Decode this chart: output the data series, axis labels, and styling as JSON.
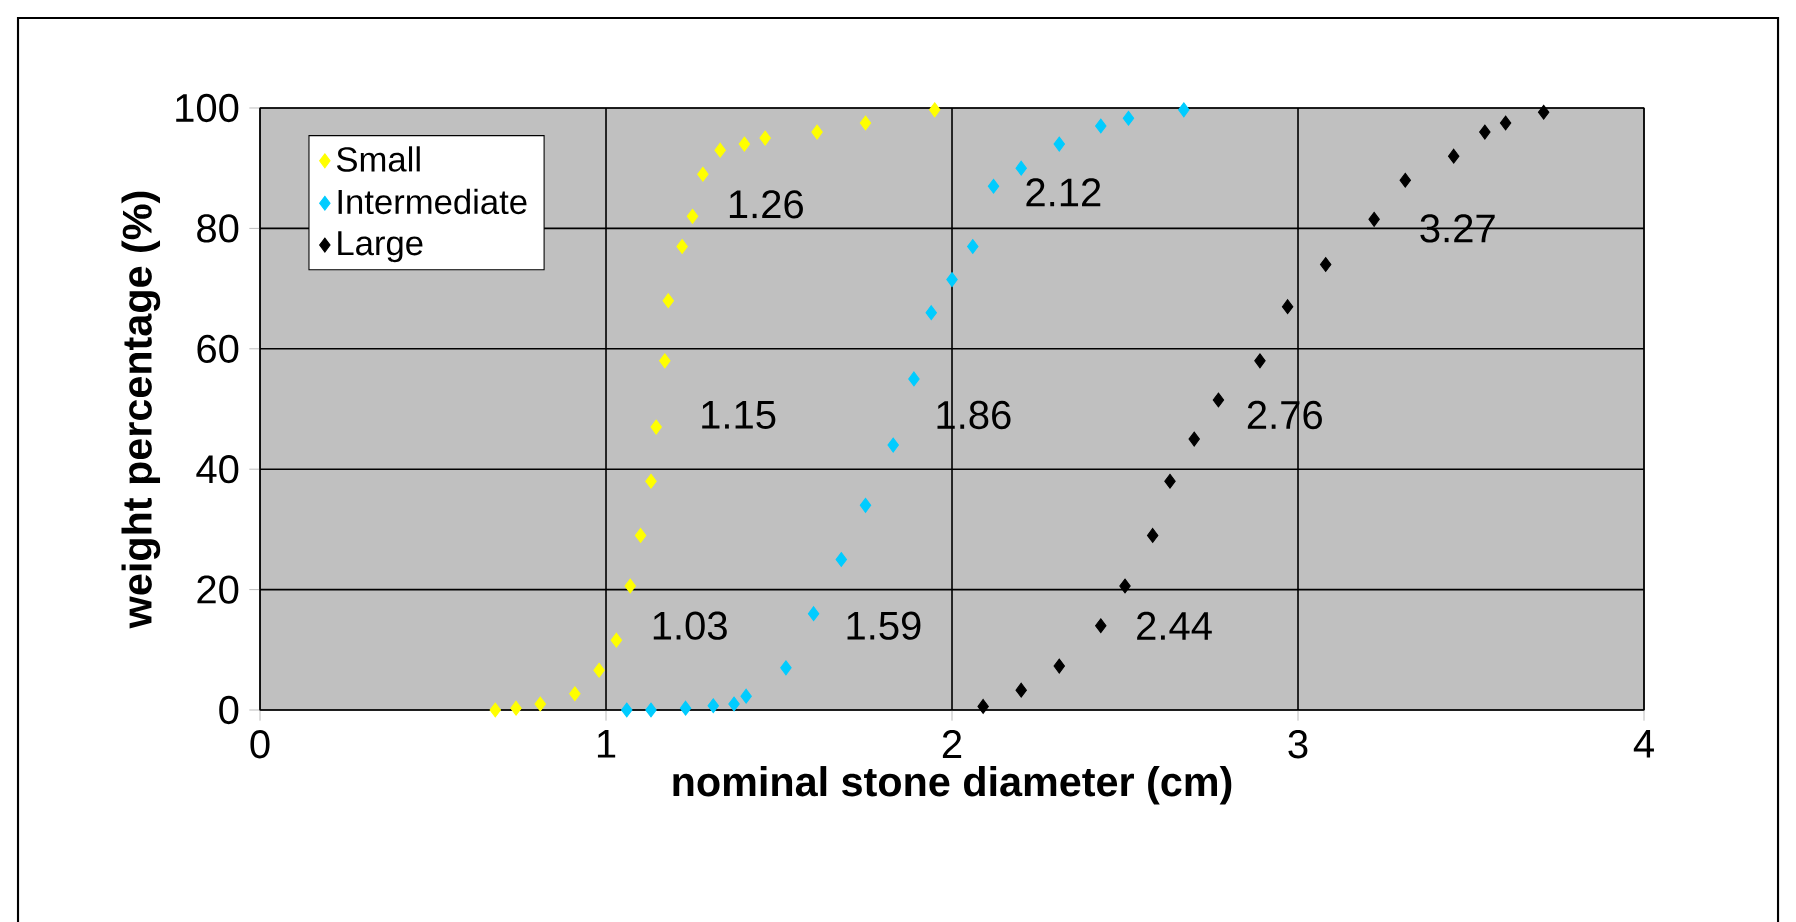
{
  "chart_data": {
    "type": "scatter",
    "xlabel": "nominal stone diameter (cm)",
    "ylabel": "weight percentage (%)",
    "xlim": [
      0,
      4
    ],
    "ylim": [
      0,
      100
    ],
    "xticks": [
      0,
      1,
      2,
      3,
      4
    ],
    "yticks": [
      0,
      20,
      40,
      60,
      80,
      100
    ],
    "grid": true,
    "legend": "top left",
    "marker": "diamond",
    "series": [
      {
        "name": "Small",
        "color": "#ffff00",
        "x": [
          0.68,
          0.74,
          0.81,
          0.91,
          0.98,
          1.03,
          1.07,
          1.1,
          1.13,
          1.145,
          1.17,
          1.18,
          1.22,
          1.25,
          1.28,
          1.33,
          1.4,
          1.46,
          1.61,
          1.75,
          1.95
        ],
        "values": [
          0,
          0.3,
          1,
          2.7,
          6.6,
          11.6,
          20.6,
          29,
          38,
          47,
          58,
          68,
          77,
          82,
          89,
          93,
          94,
          95,
          96,
          97.5,
          99.7
        ]
      },
      {
        "name": "Intermediate",
        "color": "#00ccff",
        "x": [
          1.06,
          1.13,
          1.23,
          1.31,
          1.37,
          1.405,
          1.52,
          1.6,
          1.68,
          1.75,
          1.83,
          1.89,
          1.94,
          2.0,
          2.06,
          2.12,
          2.2,
          2.31,
          2.43,
          2.51,
          2.67
        ],
        "values": [
          0,
          0,
          0.3,
          0.7,
          1,
          2.3,
          7,
          16,
          25,
          34,
          44,
          55,
          66,
          71.5,
          77,
          87,
          90,
          94,
          97,
          98.3,
          99.7
        ]
      },
      {
        "name": "Large",
        "color": "#000000",
        "x": [
          2.09,
          2.2,
          2.31,
          2.43,
          2.5,
          2.58,
          2.63,
          2.7,
          2.77,
          2.89,
          2.97,
          3.08,
          3.22,
          3.31,
          3.45,
          3.54,
          3.6,
          3.71
        ],
        "values": [
          0.6,
          3.3,
          7.3,
          14,
          20.6,
          29,
          38,
          45,
          51.5,
          58,
          67,
          74,
          81.5,
          88,
          92,
          96,
          97.5,
          99.3
        ]
      }
    ],
    "annotations": [
      "1.26",
      "1.15",
      "1.03",
      "2.12",
      "1.86",
      "1.59",
      "3.27",
      "2.76",
      "2.44"
    ]
  }
}
